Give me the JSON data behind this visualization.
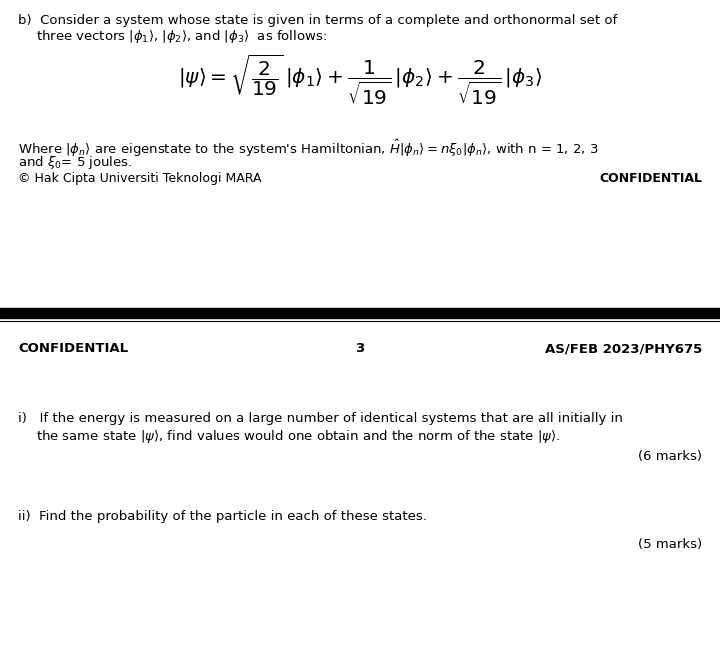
{
  "bg_color": "#ffffff",
  "text_color": "#000000",
  "fig_width": 7.2,
  "fig_height": 6.67,
  "dpi": 100,
  "confidential_left": "© Hak Cipta Universiti Teknologi MARA",
  "confidential_right": "CONFIDENTIAL",
  "footer_left": "CONFIDENTIAL",
  "footer_center": "3",
  "footer_right": "AS/FEB 2023/PHY675",
  "marks_i": "(6 marks)",
  "marks_ii": "(5 marks)"
}
